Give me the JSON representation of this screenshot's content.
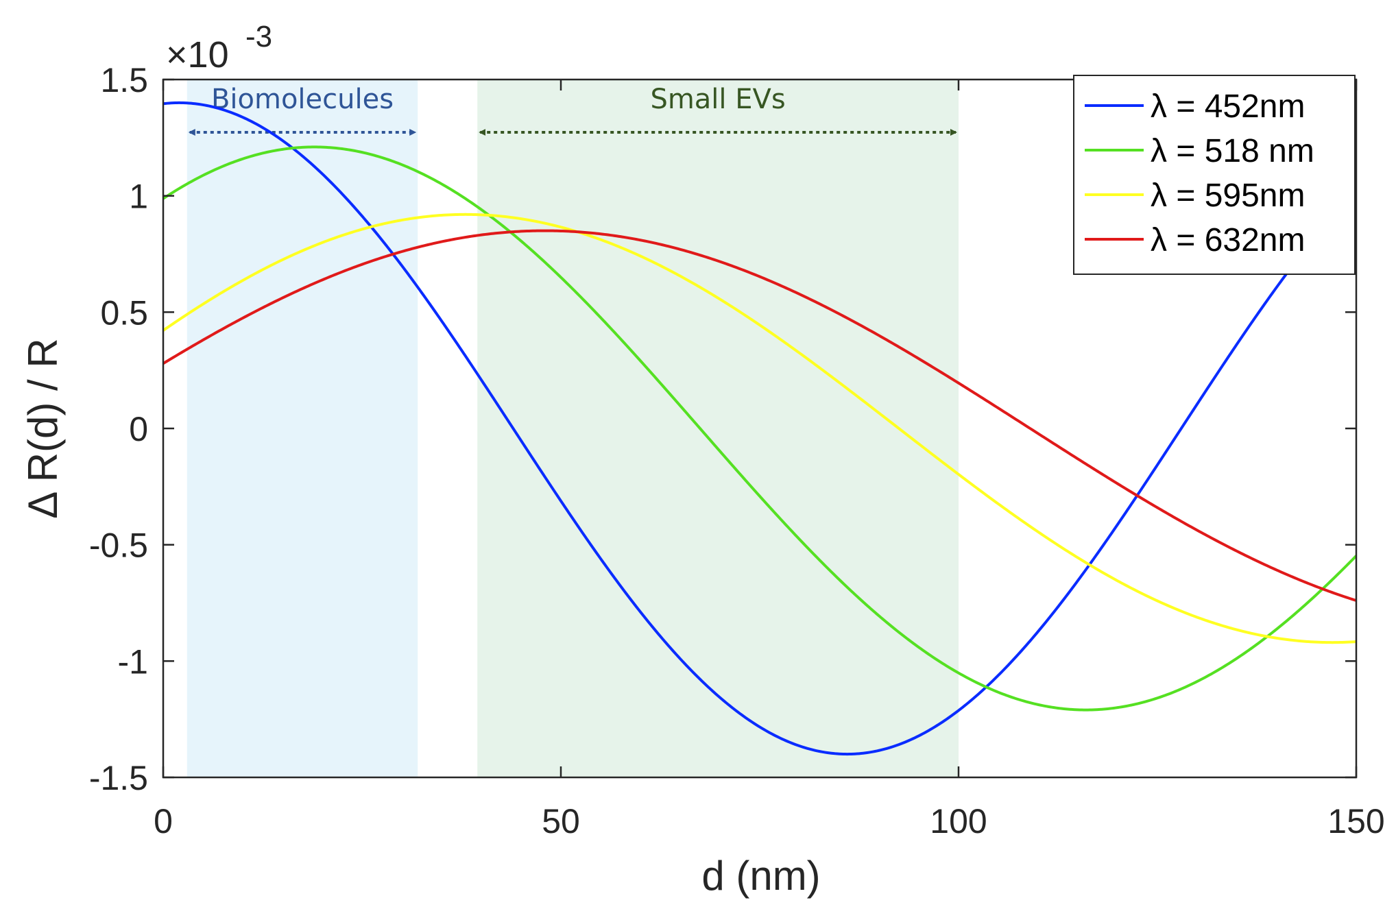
{
  "chart_data": {
    "type": "line",
    "title": "",
    "xlabel": "d (nm)",
    "ylabel": "Δ R(d) / R",
    "xlim": [
      0,
      150
    ],
    "ylim": [
      -1.5,
      1.5
    ],
    "y_exponent_label": "×10",
    "y_exponent_power": "-3",
    "xticks": [
      0,
      50,
      100,
      150
    ],
    "xtick_labels": [
      "0",
      "50",
      "100",
      "150"
    ],
    "yticks": [
      1.5,
      1,
      0.5,
      0,
      -0.5,
      -1,
      -1.5
    ],
    "ytick_labels": [
      "1.5",
      "1",
      "0.5",
      "0",
      "-0.5",
      "-1",
      "-1.5"
    ],
    "grid": false,
    "legend_position": "top-right",
    "regions": [
      {
        "name": "Biomolecules",
        "x_start": 3,
        "x_end": 32,
        "fill": "#e6f4fb",
        "label_color": "#2f5597",
        "arrow_color": "#2f5597"
      },
      {
        "name": "Small EVs",
        "x_start": 39.5,
        "x_end": 100,
        "fill": "#e6f3ea",
        "label_color": "#375623",
        "arrow_color": "#375623"
      }
    ],
    "series": [
      {
        "name": "λ = 452nm",
        "color": "#0a2cff",
        "model": {
          "amplitude": 1.4,
          "center": 2,
          "half_period": 84
        }
      },
      {
        "name": "λ = 518 nm",
        "color": "#55e022",
        "model": {
          "amplitude": 1.21,
          "center": 19,
          "half_period": 97
        }
      },
      {
        "name": "λ = 595nm",
        "color": "#ffff22",
        "model": {
          "amplitude": 0.92,
          "center": 38,
          "half_period": 109
        }
      },
      {
        "name": "λ = 632nm",
        "color": "#e01a1a",
        "model": {
          "amplitude": 0.85,
          "center": 48,
          "half_period": 122
        }
      }
    ]
  }
}
